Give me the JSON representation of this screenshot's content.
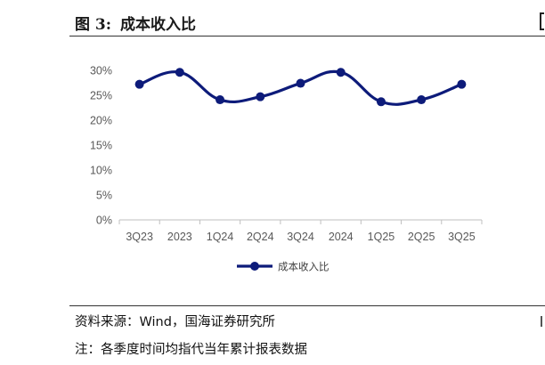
{
  "figure": {
    "label": "图 3:",
    "title": "成本收入比"
  },
  "chart_data": {
    "type": "line",
    "categories": [
      "3Q23",
      "2023",
      "1Q24",
      "2Q24",
      "3Q24",
      "2024",
      "1Q25",
      "2Q25",
      "3Q25"
    ],
    "series": [
      {
        "name": "成本收入比",
        "values": [
          27.2,
          29.6,
          24.1,
          24.7,
          27.4,
          29.6,
          23.7,
          24.1,
          27.2
        ]
      }
    ],
    "ylim": [
      0,
      30
    ],
    "yticks": [
      0,
      5,
      10,
      15,
      20,
      25,
      30
    ],
    "ytick_labels": [
      "0%",
      "5%",
      "10%",
      "15%",
      "20%",
      "25%",
      "30%"
    ],
    "grid": false,
    "legend_position": "bottom",
    "color": "#0d1b7a"
  },
  "source_text": "资料来源：Wind，国海证券研究所",
  "note_text": "注：各季度时间均指代当年累计报表数据"
}
